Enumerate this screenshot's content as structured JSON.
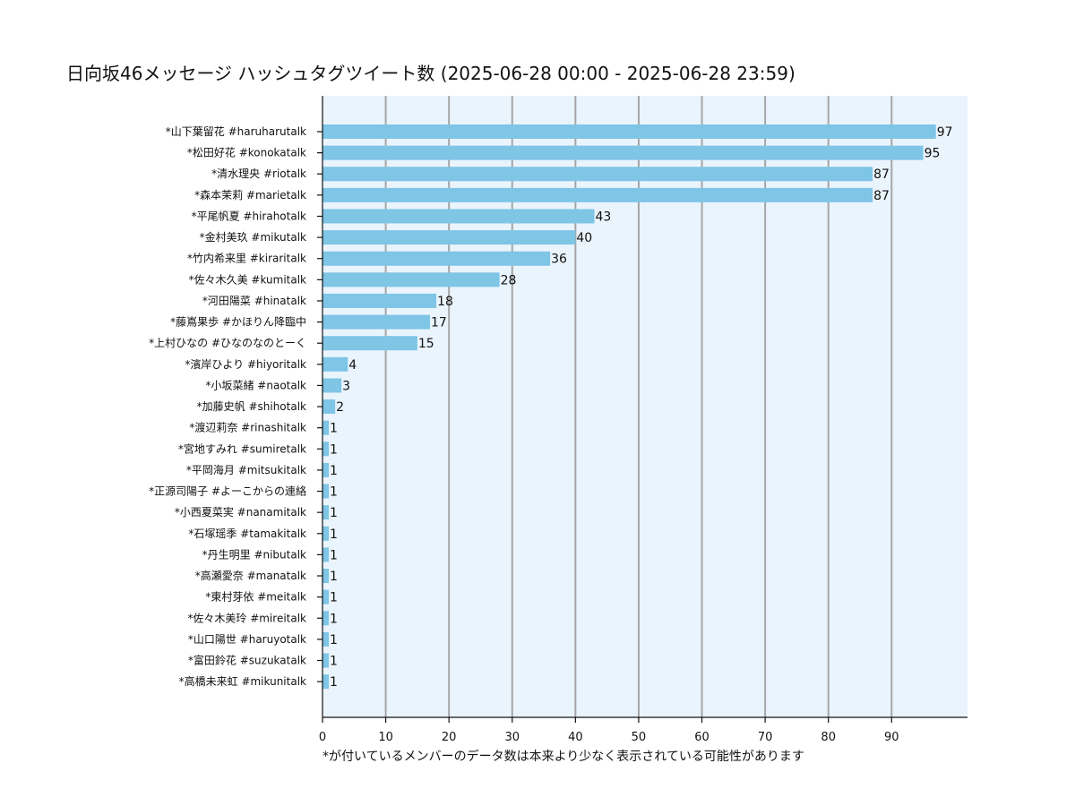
{
  "chart_data": {
    "type": "bar",
    "orientation": "horizontal",
    "title": "日向坂46メッセージ ハッシュタグツイート数 (2025-06-28 00:00 - 2025-06-28 23:59)",
    "footnote": "*が付いているメンバーのデータ数は本来より少なく表示されている可能性があります",
    "categories": [
      "*山下葉留花 #haruharutalk",
      "*松田好花 #konokatalk",
      "*清水理央 #riotalk",
      "*森本茉莉 #marietalk",
      "*平尾帆夏 #hirahotalk",
      "*金村美玖 #mikutalk",
      "*竹内希来里 #kiraritalk",
      "*佐々木久美 #kumitalk",
      "*河田陽菜 #hinatalk",
      "*藤嶌果歩 #かほりん降臨中",
      "*上村ひなの #ひなのなのとーく",
      "*濱岸ひより #hiyoritalk",
      "*小坂菜緒 #naotalk",
      "*加藤史帆 #shihotalk",
      "*渡辺莉奈 #rinashitalk",
      "*宮地すみれ #sumiretalk",
      "*平岡海月 #mitsukitalk",
      "*正源司陽子 #よーこからの連絡",
      "*小西夏菜実 #nanamitalk",
      "*石塚瑶季 #tamakitalk",
      "*丹生明里 #nibutalk",
      "*高瀬愛奈 #manatalk",
      "*東村芽依 #meitalk",
      "*佐々木美玲 #mireitalk",
      "*山口陽世 #haruyotalk",
      "*富田鈴花 #suzukatalk",
      "*高橋未来虹 #mikunitalk"
    ],
    "values": [
      97,
      95,
      87,
      87,
      43,
      40,
      36,
      28,
      18,
      17,
      15,
      4,
      3,
      2,
      1,
      1,
      1,
      1,
      1,
      1,
      1,
      1,
      1,
      1,
      1,
      1,
      1
    ],
    "xticks": [
      0,
      10,
      20,
      30,
      40,
      50,
      60,
      70,
      80,
      90
    ],
    "xlim": [
      0,
      102
    ],
    "grid": "vertical",
    "colors": {
      "bar": "#7ec5e6",
      "plot_background": "#eaf4fd",
      "grid": "#a6a6a6"
    }
  }
}
